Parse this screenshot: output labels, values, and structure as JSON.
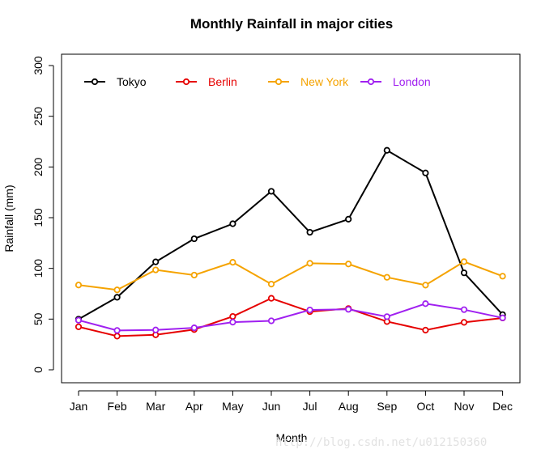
{
  "chart_data": {
    "type": "line",
    "title": "Monthly Rainfall in major cities",
    "xlabel": "Month",
    "ylabel": "Rainfall (mm)",
    "categories": [
      "Jan",
      "Feb",
      "Mar",
      "Apr",
      "May",
      "Jun",
      "Jul",
      "Aug",
      "Sep",
      "Oct",
      "Nov",
      "Dec"
    ],
    "ylim": [
      0,
      300
    ],
    "yticks": [
      0,
      50,
      100,
      150,
      200,
      250,
      300
    ],
    "legend_position": "top-left",
    "series": [
      {
        "name": "Tokyo",
        "color": "#000000",
        "values": [
          49.9,
          71.5,
          106.4,
          129.2,
          144.0,
          176.0,
          135.6,
          148.5,
          216.4,
          194.1,
          95.6,
          54.4
        ]
      },
      {
        "name": "Berlin",
        "color": "#e60000",
        "values": [
          42.4,
          33.2,
          34.5,
          39.7,
          52.6,
          70.5,
          57.4,
          60.4,
          47.6,
          39.1,
          46.8,
          51.1
        ]
      },
      {
        "name": "New York",
        "color": "#f5a300",
        "values": [
          83.6,
          78.8,
          98.5,
          93.4,
          106.0,
          84.5,
          105.0,
          104.3,
          91.2,
          83.5,
          106.6,
          92.3
        ]
      },
      {
        "name": "London",
        "color": "#a020f0",
        "values": [
          48.9,
          38.8,
          39.3,
          41.4,
          47.0,
          48.3,
          59.0,
          59.6,
          52.4,
          65.2,
          59.3,
          51.2
        ]
      }
    ]
  },
  "watermark": "http://blog.csdn.net/u012150360"
}
